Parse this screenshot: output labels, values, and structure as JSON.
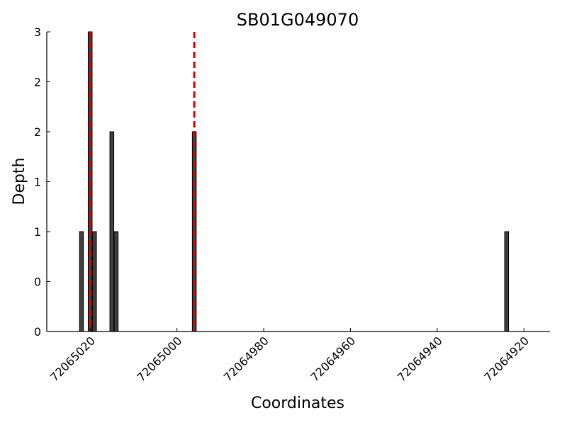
{
  "chart_data": {
    "type": "bar",
    "title": "SB01G049070",
    "xlabel": "Coordinates",
    "ylabel": "Depth",
    "x_reversed": true,
    "xlim": [
      72065030,
      72064914
    ],
    "ylim": [
      0,
      3
    ],
    "x_ticks": [
      72065020,
      72065000,
      72064980,
      72064960,
      72064940,
      72064920
    ],
    "x_tick_labels": [
      "72065020",
      "72065000",
      "72064980",
      "72064960",
      "72064940",
      "72064920"
    ],
    "y_ticks": [
      0,
      0.5,
      1,
      1.5,
      2,
      2.5,
      3
    ],
    "y_tick_labels": [
      "0",
      "0",
      "1",
      "1",
      "2",
      "2",
      "3"
    ],
    "bar_color": "#404040",
    "bars": [
      {
        "x": 72065022,
        "value": 1
      },
      {
        "x": 72065020,
        "value": 3
      },
      {
        "x": 72065019,
        "value": 1
      },
      {
        "x": 72065015,
        "value": 2
      },
      {
        "x": 72065014,
        "value": 1
      },
      {
        "x": 72064996,
        "value": 2
      },
      {
        "x": 72064924,
        "value": 1
      }
    ],
    "markers": {
      "color": "#dd0000",
      "style": "dashed",
      "x": [
        72065020,
        72064996
      ]
    },
    "grid": false
  }
}
